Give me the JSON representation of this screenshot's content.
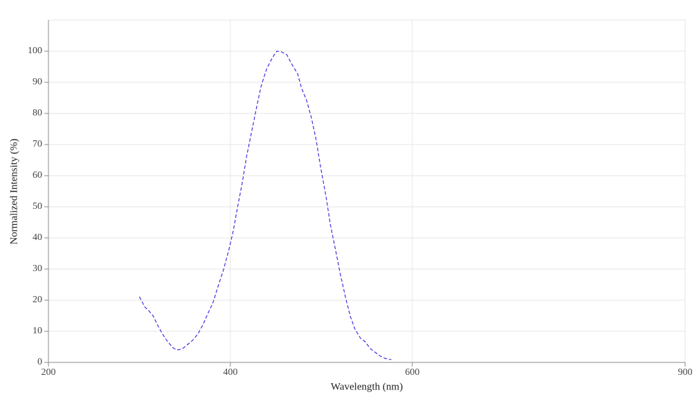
{
  "chart_data": {
    "type": "line",
    "x_label": "Wavelength (nm)",
    "y_label": "Normalized Intensity (%)",
    "xlim": [
      200,
      900
    ],
    "xticks": [
      200,
      400,
      600,
      900
    ],
    "ylim": [
      0,
      110
    ],
    "yticks": [
      0,
      10,
      20,
      30,
      40,
      50,
      60,
      70,
      80,
      90,
      100
    ],
    "grid": true,
    "series": [
      {
        "color": "#3b2fe0",
        "x": [
          300,
          306,
          310,
          315,
          320,
          325,
          331,
          337,
          341,
          346,
          350,
          354,
          360,
          365,
          370,
          375,
          381,
          386,
          392,
          398,
          403,
          408,
          413,
          418,
          424,
          429,
          434,
          440,
          446,
          451,
          456,
          462,
          468,
          474,
          478,
          484,
          489,
          494,
          499,
          505,
          510,
          516,
          521,
          527,
          532,
          537,
          543,
          548,
          554,
          559,
          565,
          570,
          577
        ],
        "values": [
          21.1,
          17.8,
          16.7,
          15,
          12,
          9.3,
          6.7,
          4.7,
          4,
          4.2,
          5,
          6,
          7.5,
          9.5,
          12.2,
          15.5,
          19.3,
          24,
          29.3,
          35.8,
          42,
          50,
          57.6,
          66.4,
          75,
          82.2,
          89,
          94.4,
          97.8,
          100,
          99.8,
          98.9,
          95.6,
          92.7,
          88.4,
          84,
          78.7,
          72,
          63.1,
          53.6,
          44.2,
          35.6,
          28.2,
          20.4,
          14.7,
          10.7,
          7.8,
          6.7,
          4.4,
          3.3,
          2,
          1.3,
          0.9
        ]
      }
    ]
  }
}
